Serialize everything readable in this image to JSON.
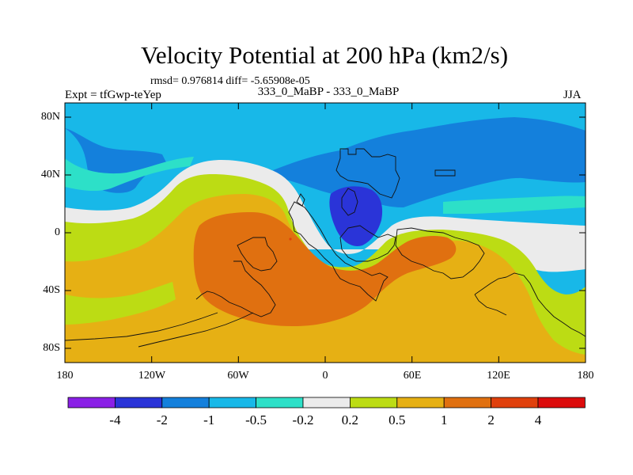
{
  "plot": {
    "title": "Velocity Potential at 200 hPa (km2/s)",
    "stats": "rmsd= 0.976814 diff= -5.65908e-05",
    "expt": "Expt = tfGwp-teYep",
    "case": "333_0_MaBP - 333_0_MaBP",
    "season": "JJA"
  },
  "axes": {
    "y_ticks": [
      "80N",
      "40N",
      "0",
      "40S",
      "80S"
    ],
    "x_ticks": [
      "180",
      "120W",
      "60W",
      "0",
      "60E",
      "120E",
      "180"
    ]
  },
  "colorbar": {
    "colors": [
      "#8a20e6",
      "#2a34d8",
      "#1480dc",
      "#18b8e8",
      "#2de0c8",
      "#ebebeb",
      "#bcdc14",
      "#e6b014",
      "#e07010",
      "#e0400c",
      "#dc0c0c"
    ],
    "labels": [
      "-4",
      "-2",
      "-1",
      "-0.5",
      "-0.2",
      "0.2",
      "0.5",
      "1",
      "2",
      "4"
    ]
  }
}
